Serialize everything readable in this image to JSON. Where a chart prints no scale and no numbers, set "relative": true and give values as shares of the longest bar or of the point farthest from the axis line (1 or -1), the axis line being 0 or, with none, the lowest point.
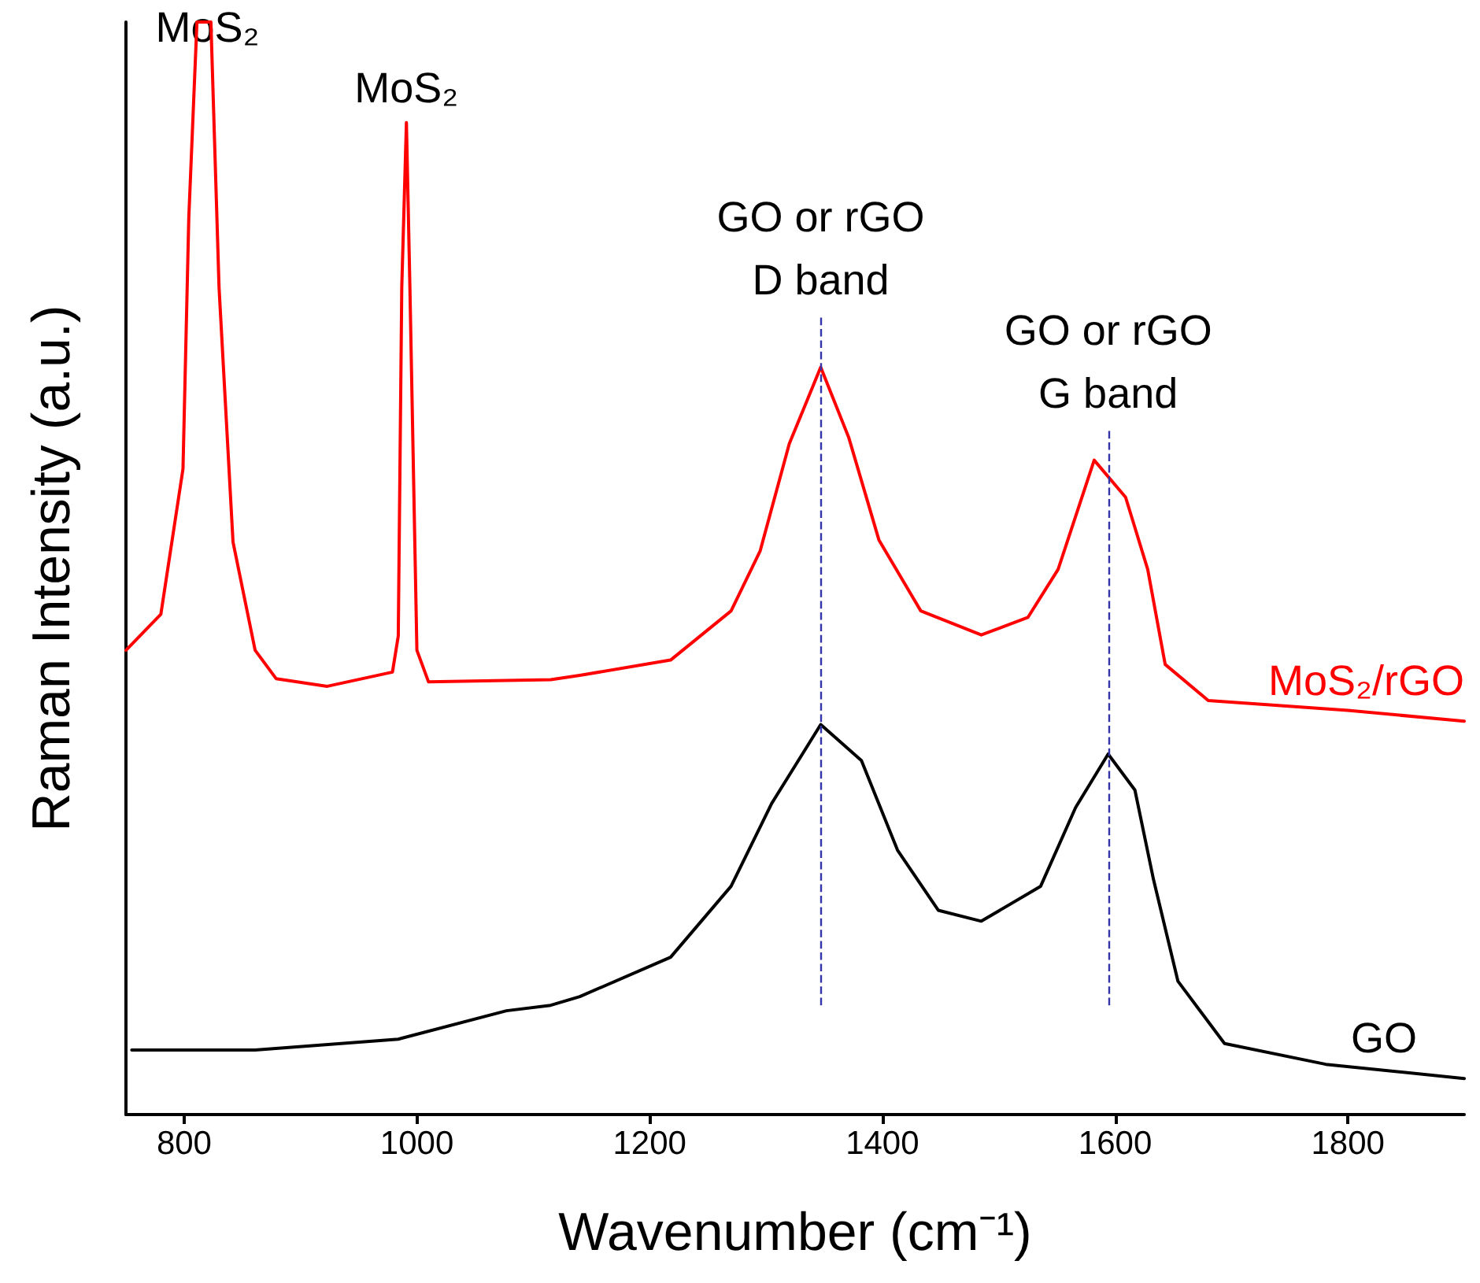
{
  "chart_data": {
    "type": "line",
    "xlabel": "Wavenumber (cm⁻¹)",
    "ylabel": "Raman Intensity (a.u.)",
    "relative": true,
    "marker": "none",
    "xlim": [
      750,
      1900
    ],
    "xticks": [
      800,
      1000,
      1200,
      1400,
      1600,
      1800
    ],
    "series": [
      {
        "name": "MoS₂/rGO",
        "color": "#ff0000",
        "x": [
          750,
          780,
          799,
          804,
          811,
          823,
          830,
          842,
          861,
          879,
          923,
          979,
          984,
          987,
          991,
          994,
          1000,
          1010,
          1115,
          1140,
          1218,
          1270,
          1295,
          1320,
          1347,
          1371,
          1397,
          1433,
          1485,
          1525,
          1551,
          1582,
          1609,
          1628,
          1643,
          1680,
          1800,
          1900
        ],
        "values": [
          0.425,
          0.458,
          0.591,
          0.821,
          1,
          1,
          0.757,
          0.524,
          0.425,
          0.399,
          0.392,
          0.405,
          0.438,
          0.757,
          0.908,
          0.757,
          0.425,
          0.396,
          0.398,
          0.402,
          0.416,
          0.461,
          0.516,
          0.614,
          0.684,
          0.62,
          0.526,
          0.461,
          0.439,
          0.455,
          0.499,
          0.599,
          0.565,
          0.499,
          0.412,
          0.379,
          0.37,
          0.36
        ]
      },
      {
        "name": "GO",
        "color": "#000000",
        "x": [
          755,
          861,
          984,
          1077,
          1115,
          1140,
          1218,
          1270,
          1305,
          1347,
          1382,
          1413,
          1448,
          1485,
          1536,
          1566,
          1594,
          1617,
          1633,
          1654,
          1694,
          1781,
          1900
        ],
        "values": [
          0.059,
          0.059,
          0.069,
          0.095,
          0.1,
          0.108,
          0.144,
          0.209,
          0.285,
          0.357,
          0.324,
          0.242,
          0.187,
          0.177,
          0.209,
          0.281,
          0.33,
          0.297,
          0.215,
          0.122,
          0.065,
          0.046,
          0.033
        ]
      }
    ],
    "ref_lines": [
      {
        "axis": "x",
        "value": 1347,
        "color": "#3333aa",
        "line_style": "dashed"
      },
      {
        "axis": "x",
        "value": 1594,
        "color": "#3333aa",
        "line_style": "dashed"
      }
    ],
    "annotations": [
      {
        "text": "MoS₂",
        "x": 820,
        "y": 0.963
      },
      {
        "text": "MoS₂",
        "x": 991,
        "y": 0.908
      },
      {
        "text": "GO or rGO\nD band",
        "x": 1347,
        "y": 0.732
      },
      {
        "text": "GO or rGO\nG band",
        "x": 1594,
        "y": 0.628
      }
    ]
  }
}
